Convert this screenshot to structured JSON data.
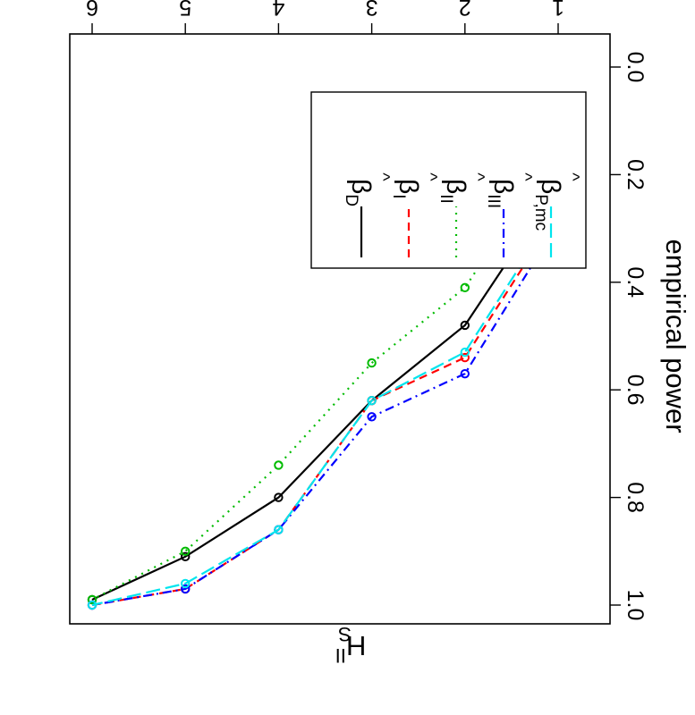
{
  "chart_data": {
    "type": "line",
    "title": "H",
    "title_sup": "II",
    "title_sub": "S",
    "xlabel": "",
    "ylabel": "empirical power",
    "x": [
      1,
      2,
      3,
      4,
      5,
      6
    ],
    "xlim": [
      1,
      6
    ],
    "ylim": [
      0,
      1
    ],
    "x_ticks": [
      "1",
      "2",
      "3",
      "4",
      "5",
      "6"
    ],
    "y_ticks": [
      "0.0",
      "0.2",
      "0.4",
      "0.6",
      "0.8",
      "1.0"
    ],
    "y_tick_values": [
      0,
      0.2,
      0.4,
      0.6,
      0.8,
      1.0
    ],
    "grid": false,
    "legend_position": "top-right",
    "orientation_note": "figure rotated 180 degrees",
    "series": [
      {
        "name": "β̂D",
        "base": "β",
        "sub": "D",
        "values": [
          0.22,
          0.48,
          0.62,
          0.8,
          0.91,
          0.99
        ],
        "color": "#000000",
        "dash": ""
      },
      {
        "name": "β̂I",
        "base": "β",
        "sub": "I",
        "values": [
          0.27,
          0.54,
          0.62,
          0.86,
          0.97,
          1.0
        ],
        "color": "#ff0000",
        "dash": "9,6"
      },
      {
        "name": "β̂II",
        "base": "β",
        "sub": "II",
        "values": [
          0.15,
          0.41,
          0.55,
          0.74,
          0.9,
          0.99
        ],
        "color": "#00bb00",
        "dash": "2,6"
      },
      {
        "name": "β̂III",
        "base": "β",
        "sub": "III",
        "values": [
          0.29,
          0.57,
          0.65,
          0.86,
          0.97,
          1.0
        ],
        "color": "#0000ff",
        "dash": "10,5,2,5"
      },
      {
        "name": "β̂P,mc",
        "base": "β",
        "sub": "P,mc",
        "values": [
          0.26,
          0.53,
          0.62,
          0.86,
          0.96,
          1.0
        ],
        "color": "#00e5ee",
        "dash": "16,6"
      }
    ]
  }
}
